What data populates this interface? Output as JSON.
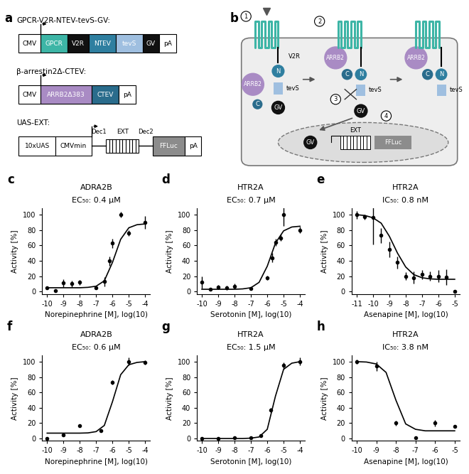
{
  "panel_a": {
    "panel_label": "a",
    "constructs": [
      {
        "name": "GPCR-V2R-NTEV-tevS-GV:",
        "elements": [
          {
            "label": "CMV",
            "kind": "box",
            "color": "#ffffff",
            "text_color": "#000000",
            "promoter": true
          },
          {
            "label": "GPCR",
            "kind": "box",
            "color": "#3db5a6",
            "text_color": "#ffffff"
          },
          {
            "label": "V2R",
            "kind": "box",
            "color": "#111111",
            "text_color": "#ffffff"
          },
          {
            "label": "NTEV",
            "kind": "box",
            "color": "#2f7fa0",
            "text_color": "#ffffff"
          },
          {
            "label": "tevS",
            "kind": "box",
            "color": "#9fbfe0",
            "text_color": "#ffffff"
          },
          {
            "label": "GV",
            "kind": "box",
            "color": "#111111",
            "text_color": "#ffffff"
          },
          {
            "label": "pA",
            "kind": "box",
            "color": "#ffffff",
            "text_color": "#000000"
          }
        ]
      },
      {
        "name": "β-arrestin2Δ-CTEV:",
        "elements": [
          {
            "label": "CMV",
            "kind": "box",
            "color": "#ffffff",
            "text_color": "#000000",
            "promoter": true
          },
          {
            "label": "ARRB2Δ383",
            "kind": "box",
            "color": "#a98bc4",
            "text_color": "#ffffff"
          },
          {
            "label": "CTEV",
            "kind": "box",
            "color": "#2a6c8c",
            "text_color": "#ffffff"
          },
          {
            "label": "pA",
            "kind": "box",
            "color": "#ffffff",
            "text_color": "#000000"
          }
        ]
      },
      {
        "name": "UAS-EXT:",
        "elements": [
          {
            "label": "10xUAS",
            "kind": "box",
            "color": "#ffffff",
            "text_color": "#000000"
          },
          {
            "label": "CMVmin",
            "kind": "box",
            "color": "#ffffff",
            "text_color": "#000000",
            "promoter": true
          },
          {
            "label": "Dec1",
            "kind": "line",
            "color": "#000000",
            "text_color": "#000000"
          },
          {
            "label": "EXT",
            "kind": "striped",
            "color": "#ffffff",
            "text_color": "#000000"
          },
          {
            "label": "Dec2",
            "kind": "line",
            "color": "#000000",
            "text_color": "#000000"
          },
          {
            "label": "FFLuc",
            "kind": "box",
            "color": "#8c8c8c",
            "text_color": "#ffffff"
          },
          {
            "label": "pA",
            "kind": "box",
            "color": "#ffffff",
            "text_color": "#000000"
          }
        ]
      }
    ]
  },
  "panel_b": {
    "panel_label": "b",
    "steps": [
      "1",
      "2",
      "3",
      "4"
    ],
    "arrestin": "ARRB2",
    "c_term": "C",
    "n_term": "N",
    "tail": "V2R",
    "site": "tevS",
    "activator": "GV",
    "reporter": "EXT",
    "luciferase": "FFLuc"
  },
  "chart_data": [
    {
      "type": "scatter",
      "panel_label": "c",
      "title": "ADRA2B",
      "subtitle": "EC₅₀: 0.4 μM",
      "x_label": "Norepinephrine [M], log(10)",
      "y_label": "Activity [%]",
      "x": [
        -10,
        -9.5,
        -9,
        -8.5,
        -8,
        -7,
        -6.5,
        -6.2,
        -6,
        -5.5,
        -5,
        -4
      ],
      "values": [
        5,
        1,
        11,
        10,
        12,
        5,
        13,
        40,
        63,
        100,
        76,
        90
      ],
      "errors": [
        2,
        1,
        5,
        4,
        3,
        2,
        6,
        6,
        6,
        4,
        4,
        8
      ],
      "fit": {
        "x": [
          -10,
          -9.5,
          -9,
          -8.5,
          -8,
          -7.5,
          -7,
          -6.5,
          -6,
          -5.5,
          -5,
          -4.5,
          -4
        ],
        "values": [
          5,
          5,
          5,
          5,
          5,
          5.5,
          7,
          14,
          38,
          68,
          83,
          87,
          88
        ]
      },
      "xlim": [
        -10.3,
        -3.7
      ],
      "ylim": [
        -3,
        108
      ],
      "xticks": [
        -10,
        -9,
        -8,
        -7,
        -6,
        -5,
        -4
      ],
      "yticks": [
        0,
        20,
        40,
        60,
        80,
        100
      ],
      "color": "#000000",
      "marker": "circle"
    },
    {
      "type": "scatter",
      "panel_label": "d",
      "title": "HTR2A",
      "subtitle": "EC₅₀: 0.7 μM",
      "x_label": "Serotonin [M], log(10)",
      "y_label": "Activity [%]",
      "x": [
        -10,
        -9.5,
        -9,
        -8.5,
        -8,
        -7,
        -6,
        -5.7,
        -5.5,
        -5.2,
        -5,
        -4
      ],
      "values": [
        12,
        3,
        6,
        5,
        7,
        4,
        18,
        44,
        64,
        70,
        100,
        80
      ],
      "errors": [
        8,
        2,
        3,
        3,
        3,
        2,
        3,
        6,
        5,
        4,
        15,
        4
      ],
      "fit": {
        "x": [
          -10,
          -9.5,
          -9,
          -8.5,
          -8,
          -7.5,
          -7,
          -6.5,
          -6,
          -5.5,
          -5,
          -4.5,
          -4
        ],
        "values": [
          3,
          3,
          3,
          3,
          3,
          3.5,
          5,
          12,
          33,
          63,
          79,
          84,
          85
        ]
      },
      "xlim": [
        -10.3,
        -3.7
      ],
      "ylim": [
        -3,
        108
      ],
      "xticks": [
        -10,
        -9,
        -8,
        -7,
        -6,
        -5,
        -4
      ],
      "yticks": [
        0,
        20,
        40,
        60,
        80,
        100
      ],
      "color": "#000000",
      "marker": "circle"
    },
    {
      "type": "scatter",
      "panel_label": "e",
      "title": "HTR2A",
      "subtitle": "IC₅₀: 0.8 nM",
      "x_label": "Asenapine [M], log(10)",
      "y_label": "Activity [%]",
      "x": [
        -11,
        -10.5,
        -10,
        -9.5,
        -9,
        -8.5,
        -8,
        -7.5,
        -7,
        -6.5,
        -6,
        -5.5,
        -5
      ],
      "values": [
        100,
        97,
        96,
        73,
        55,
        38,
        20,
        18,
        22,
        20,
        20,
        19,
        0
      ],
      "errors": [
        5,
        3,
        35,
        10,
        10,
        8,
        5,
        8,
        6,
        6,
        8,
        10,
        2
      ],
      "fit": {
        "x": [
          -11,
          -10.5,
          -10,
          -9.5,
          -9,
          -8.5,
          -8,
          -7.5,
          -7,
          -6.5,
          -6,
          -5.5,
          -5
        ],
        "values": [
          100,
          99,
          96,
          89,
          72,
          50,
          32,
          22,
          18,
          16.5,
          16,
          16,
          16
        ]
      },
      "xlim": [
        -11.3,
        -4.7
      ],
      "ylim": [
        -3,
        108
      ],
      "xticks": [
        -11,
        -10,
        -9,
        -8,
        -7,
        -6,
        -5
      ],
      "yticks": [
        0,
        20,
        40,
        60,
        80,
        100
      ],
      "color": "#000000",
      "marker": "circle"
    },
    {
      "type": "scatter",
      "panel_label": "f",
      "title": "ADRA2B",
      "subtitle": "EC₅₀: 0.6 μM",
      "x_label": "Norepinephrine [M], log(10)",
      "y_label": "Activity [%]",
      "x": [
        -10,
        -9,
        -8,
        -6.7,
        -6,
        -5,
        -4
      ],
      "values": [
        0,
        5,
        17,
        10,
        73,
        100,
        99
      ],
      "errors": [
        1,
        1,
        1,
        1,
        3,
        5,
        3
      ],
      "fit": {
        "x": [
          -10,
          -9.5,
          -9,
          -8.5,
          -8,
          -7.5,
          -7,
          -6.5,
          -6,
          -5.5,
          -5,
          -4.5,
          -4
        ],
        "values": [
          7,
          7,
          7,
          7,
          7,
          7.3,
          9,
          17,
          48,
          83,
          96,
          99,
          100
        ]
      },
      "xlim": [
        -10.3,
        -3.7
      ],
      "ylim": [
        -3,
        108
      ],
      "xticks": [
        -10,
        -9,
        -8,
        -7,
        -6,
        -5,
        -4
      ],
      "yticks": [
        0,
        20,
        40,
        60,
        80,
        100
      ],
      "color": "#000000",
      "marker": "circle"
    },
    {
      "type": "scatter",
      "panel_label": "g",
      "title": "HTR2A",
      "subtitle": "EC₅₀: 1.5 μM",
      "x_label": "Serotonin [M], log(10)",
      "y_label": "Activity [%]",
      "x": [
        -10,
        -9,
        -8,
        -7,
        -6.4,
        -5.8,
        -5,
        -4
      ],
      "values": [
        0,
        0,
        1,
        1,
        4,
        37,
        95,
        100
      ],
      "errors": [
        1,
        1,
        1,
        1,
        1,
        3,
        4,
        5
      ],
      "fit": {
        "x": [
          -10,
          -9.5,
          -9,
          -8.5,
          -8,
          -7.5,
          -7,
          -6.5,
          -6,
          -5.5,
          -5,
          -4.5,
          -4
        ],
        "values": [
          0,
          0,
          0,
          0,
          0,
          0,
          0.5,
          2,
          12,
          55,
          90,
          98,
          100
        ]
      },
      "xlim": [
        -10.3,
        -3.7
      ],
      "ylim": [
        -3,
        108
      ],
      "xticks": [
        -10,
        -9,
        -8,
        -7,
        -6,
        -5,
        -4
      ],
      "yticks": [
        0,
        20,
        40,
        60,
        80,
        100
      ],
      "color": "#000000",
      "marker": "circle"
    },
    {
      "type": "scatter",
      "panel_label": "h",
      "title": "HTR2A",
      "subtitle": "IC₅₀: 3.8 nM",
      "x_label": "Asenapine [M], log(10)",
      "y_label": "Activity [%]",
      "x": [
        -10,
        -9,
        -8,
        -7,
        -6,
        -5
      ],
      "values": [
        100,
        94,
        20,
        1,
        20,
        16
      ],
      "errors": [
        3,
        6,
        3,
        2,
        4,
        2
      ],
      "fit": {
        "x": [
          -10,
          -9.5,
          -9,
          -8.5,
          -8,
          -7.5,
          -7,
          -6.5,
          -6,
          -5.5,
          -5
        ],
        "values": [
          100,
          99.5,
          97,
          86,
          50,
          19,
          12,
          10,
          10,
          10,
          10
        ]
      },
      "xlim": [
        -10.25,
        -4.75
      ],
      "ylim": [
        -3,
        108
      ],
      "xticks": [
        -10,
        -9,
        -8,
        -7,
        -6,
        -5
      ],
      "yticks": [
        0,
        20,
        40,
        60,
        80,
        100
      ],
      "color": "#000000",
      "marker": "circle"
    }
  ]
}
